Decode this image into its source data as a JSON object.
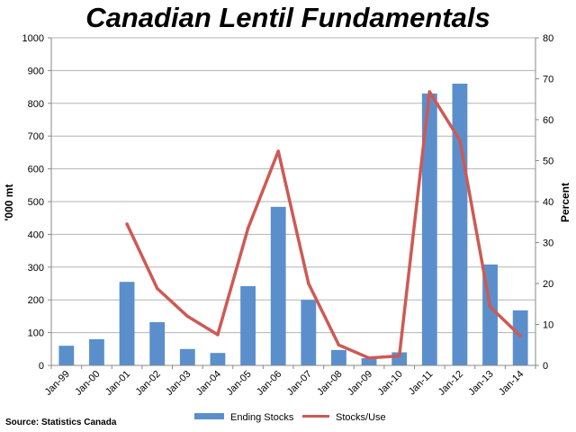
{
  "chart_data": {
    "type": "bar",
    "title": "Canadian Lentil Fundamentals",
    "categories": [
      "Jan-99",
      "Jan-00",
      "Jan-01",
      "Jan-02",
      "Jan-03",
      "Jan-04",
      "Jan-05",
      "Jan-06",
      "Jan-07",
      "Jan-08",
      "Jan-09",
      "Jan-10",
      "Jan-11",
      "Jan-12",
      "Jan-13",
      "Jan-14"
    ],
    "series": [
      {
        "name": "Ending Stocks",
        "type": "bar",
        "axis": "left",
        "color": "#5b8fcc",
        "values": [
          60,
          80,
          255,
          132,
          50,
          38,
          242,
          484,
          200,
          47,
          22,
          40,
          830,
          860,
          308,
          168
        ]
      },
      {
        "name": "Stocks/Use",
        "type": "line",
        "axis": "right",
        "color": "#cd5a55",
        "values": [
          null,
          null,
          34.5,
          18.8,
          12.0,
          7.5,
          33.5,
          52.3,
          20.0,
          5.0,
          1.8,
          2.3,
          66.8,
          55.0,
          14.3,
          7.2
        ]
      }
    ],
    "ylabel": "'000 mt",
    "y2label": "Percent",
    "ylim": [
      0,
      1000
    ],
    "y2lim": [
      0,
      80
    ],
    "yticks": [
      "0",
      "100",
      "200",
      "300",
      "400",
      "500",
      "600",
      "700",
      "800",
      "900",
      "1000"
    ],
    "y2ticks": [
      "0",
      "10",
      "20",
      "30",
      "40",
      "50",
      "60",
      "70",
      "80"
    ],
    "legend_position": "bottom",
    "grid": true,
    "source": "Source: Statistics Canada"
  }
}
